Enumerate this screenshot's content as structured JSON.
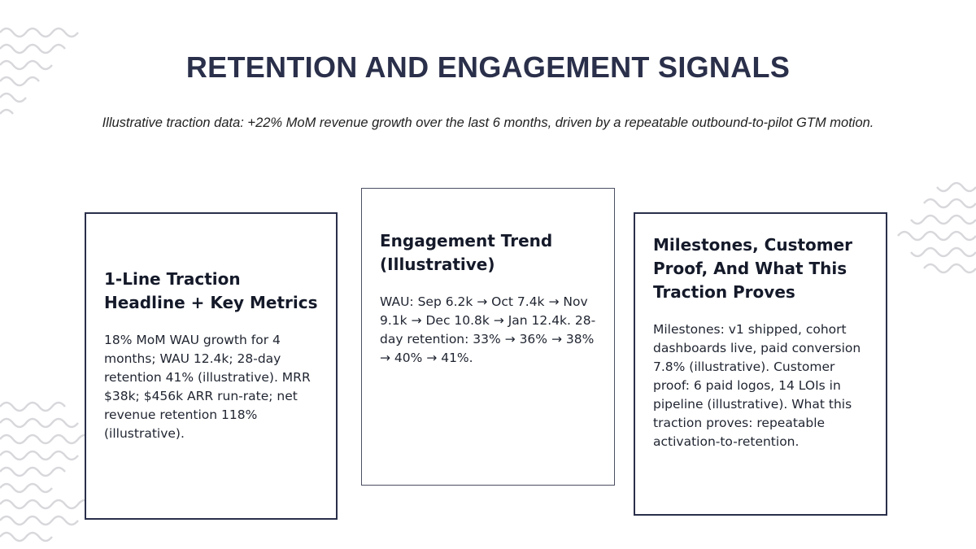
{
  "title": "RETENTION AND ENGAGEMENT SIGNALS",
  "subtitle": "Illustrative traction data: +22% MoM revenue growth over the last 6 months, driven by a repeatable outbound-to-pilot GTM motion.",
  "cards": [
    {
      "title": "1-Line Traction Headline + Key Metrics",
      "body": "18% MoM WAU growth for 4 months; WAU 12.4k; 28-day retention 41% (illustrative). MRR $38k; $456k ARR run-rate; net revenue retention 118% (illustrative)."
    },
    {
      "title": "Engagement Trend (Illustrative)",
      "body": "WAU: Sep 6.2k → Oct 7.4k → Nov 9.1k → Dec 10.8k → Jan 12.4k. 28-day retention: 33% → 36% → 38% → 40% → 41%."
    },
    {
      "title": "Milestones, Customer Proof, And What This Traction Proves",
      "body": "Milestones: v1 shipped, cohort dashboards live, paid conversion 7.8% (illustrative). Customer proof: 6 paid logos, 14 LOIs in pipeline (illustrative). What this traction proves: repeatable activation-to-retention."
    }
  ]
}
